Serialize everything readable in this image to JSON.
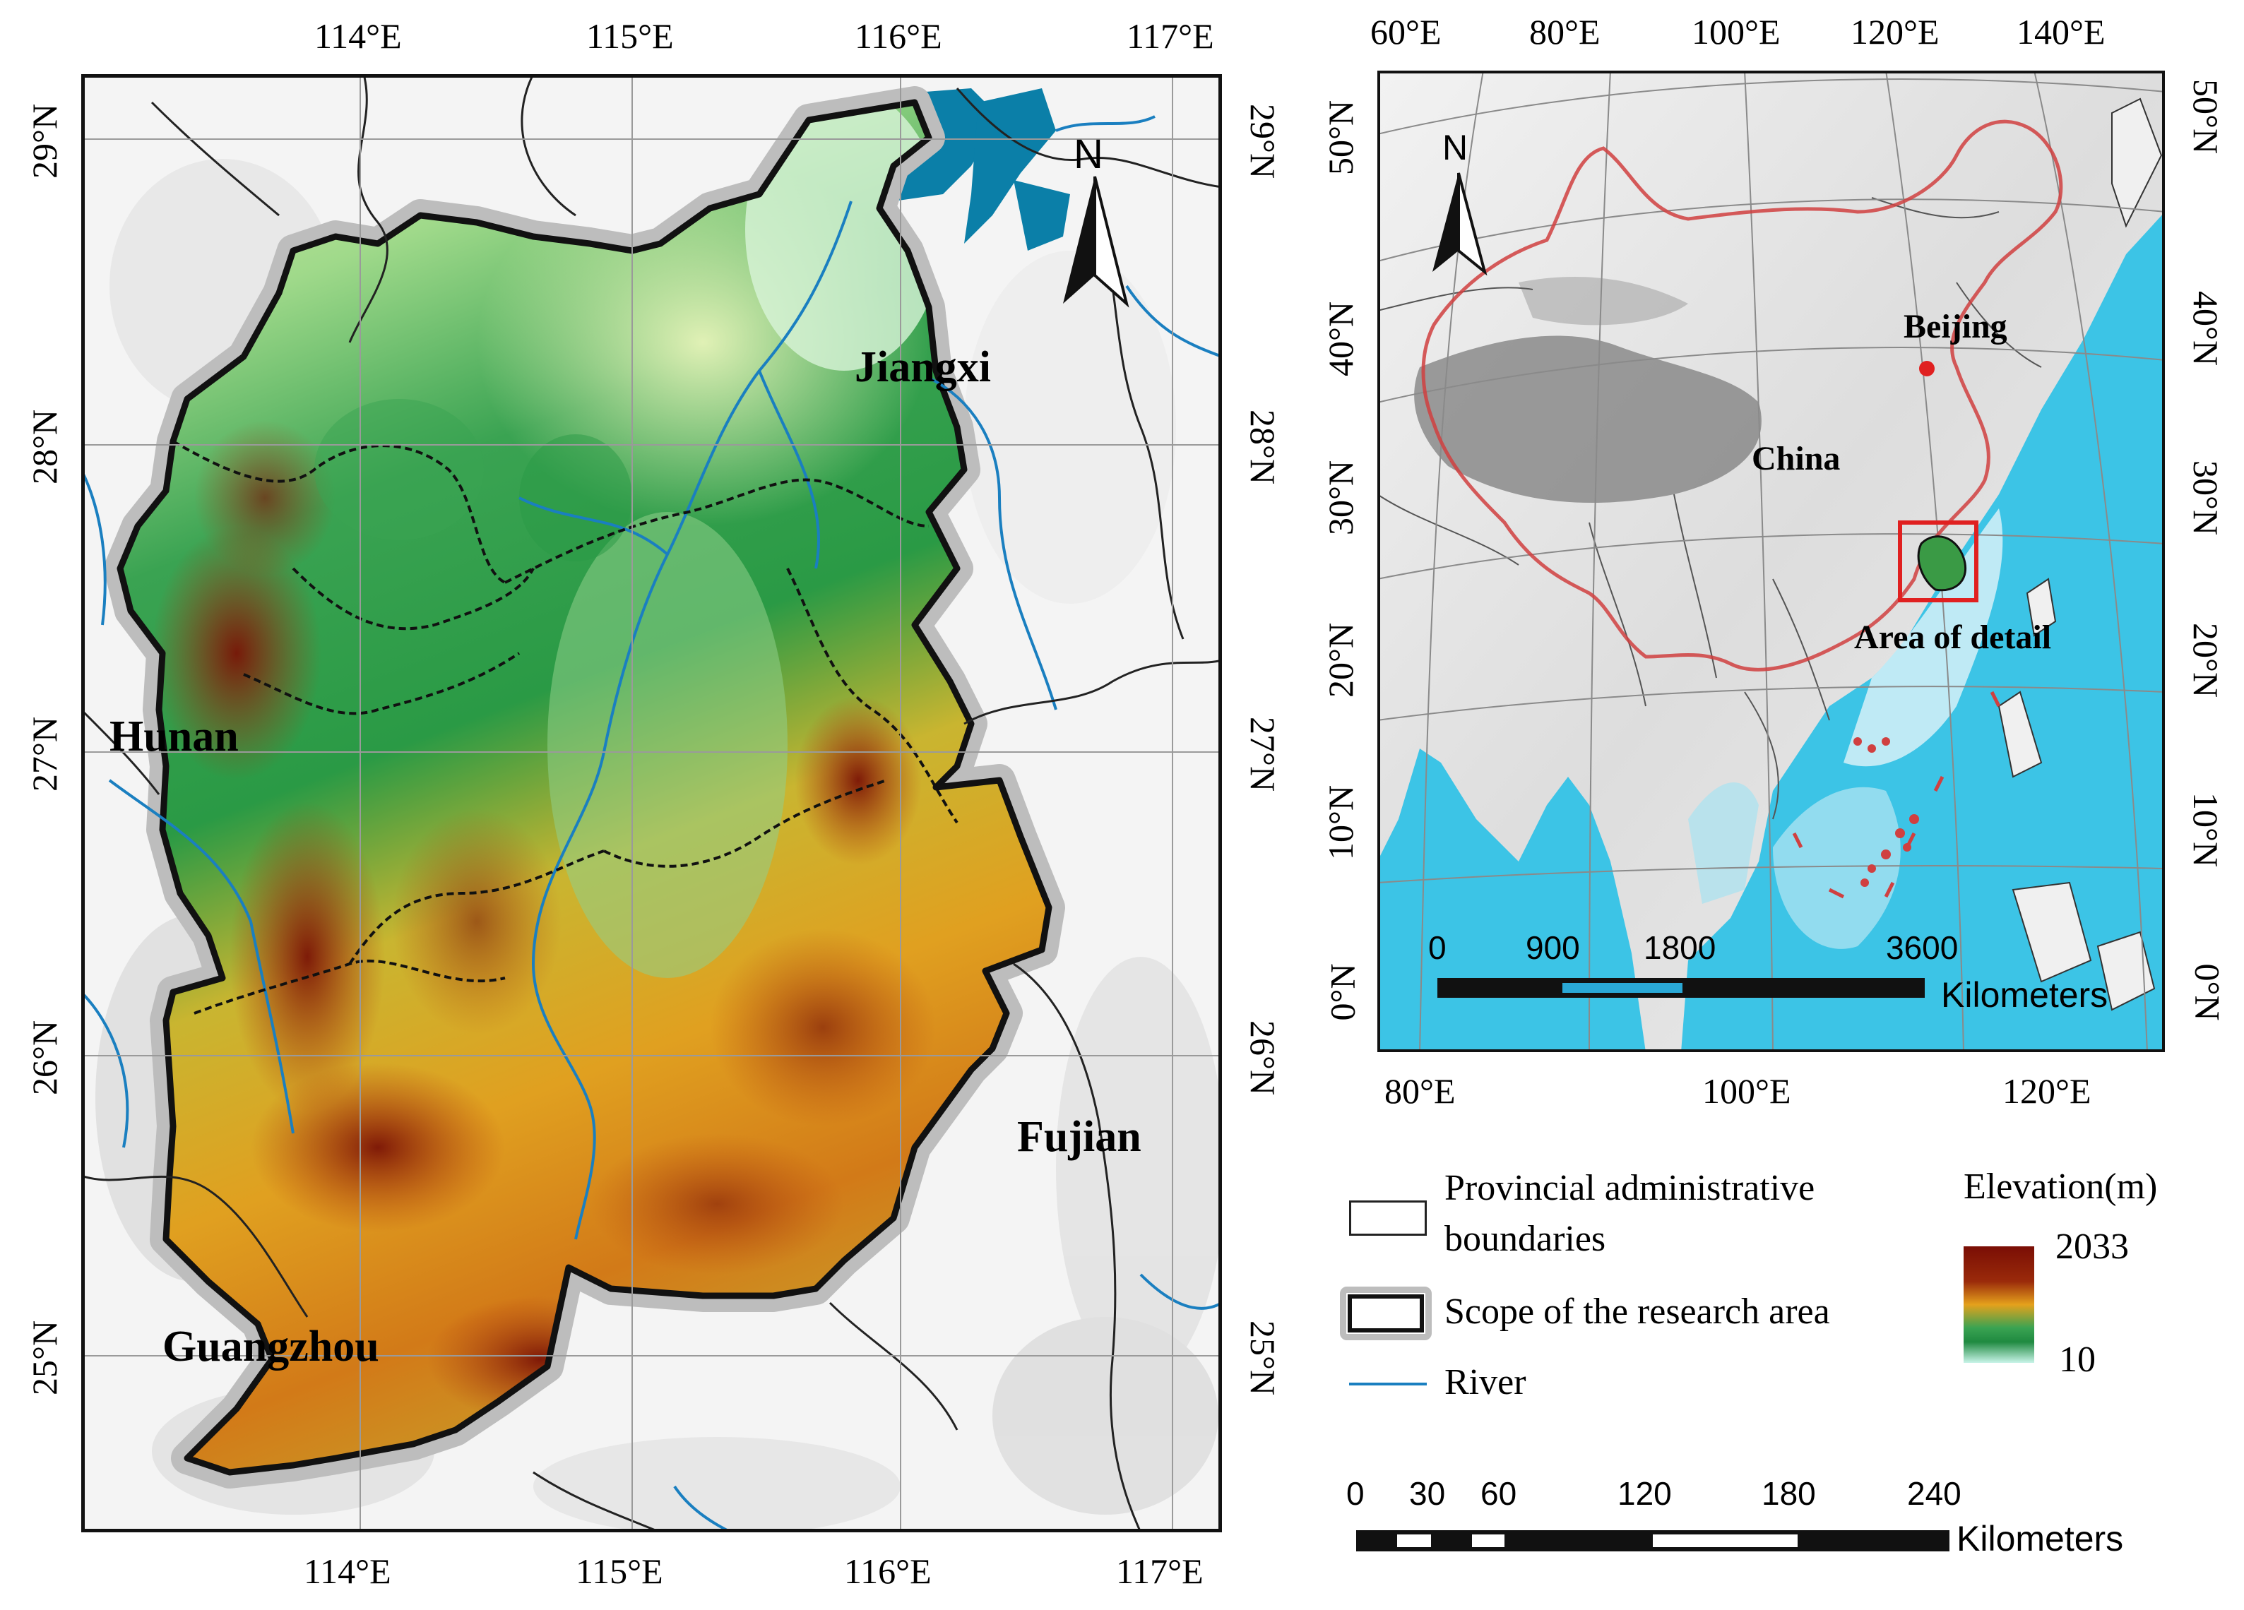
{
  "main_map": {
    "top_ticks": [
      "114°E",
      "115°E",
      "116°E",
      "117°E"
    ],
    "bottom_ticks": [
      "114°E",
      "115°E",
      "116°E",
      "117°E"
    ],
    "left_ticks": [
      "29°N",
      "28°N",
      "27°N",
      "26°N",
      "25°N"
    ],
    "right_ticks": [
      "29°N",
      "28°N",
      "27°N",
      "26°N",
      "25°N"
    ],
    "labels": {
      "jiangxi": "Jiangxi",
      "hunan": "Hunan",
      "fujian": "Fujian",
      "guangzhou": "Guangzhou"
    },
    "north_arrow": "N",
    "colors": {
      "low": "#b9f3e6",
      "mid_green": "#2a9a45",
      "yellow": "#f2d23c",
      "orange": "#e48a1c",
      "high": "#8b1a0a",
      "river": "#1a7fc0",
      "lake": "#0b7fa8"
    }
  },
  "inset_map": {
    "top_ticks": [
      "60°E",
      "80°E",
      "100°E",
      "120°E",
      "140°E"
    ],
    "bottom_ticks": [
      "80°E",
      "100°E",
      "120°E"
    ],
    "left_ticks": [
      "50°N",
      "40°N",
      "30°N",
      "20°N",
      "10°N",
      "0°N"
    ],
    "right_ticks": [
      "50°N",
      "40°N",
      "30°N",
      "20°N",
      "10°N",
      "0°N"
    ],
    "labels": {
      "beijing": "Beijing",
      "china": "China",
      "area_of_detail": "Area of detail"
    },
    "north_arrow": "N",
    "scale": {
      "numbers": [
        "0",
        "900",
        "1800",
        "3600"
      ],
      "unit": "Kilometers"
    },
    "colors": {
      "sea": "#3cc4e6",
      "china_border": "#d04040",
      "detail_box": "#e02020",
      "beijing_dot": "#e02020"
    }
  },
  "legend": {
    "items": [
      {
        "label_line1": "Provincial administrative",
        "label_line2": "boundaries"
      },
      {
        "label_line1": "Scope of the research area"
      },
      {
        "label_line1": "River"
      }
    ],
    "elevation_title": "Elevation(m)",
    "elevation_max": "2033",
    "elevation_min": "10"
  },
  "bottom_scale": {
    "numbers": [
      "0",
      "30",
      "60",
      "120",
      "180",
      "240"
    ],
    "unit": "Kilometers"
  }
}
